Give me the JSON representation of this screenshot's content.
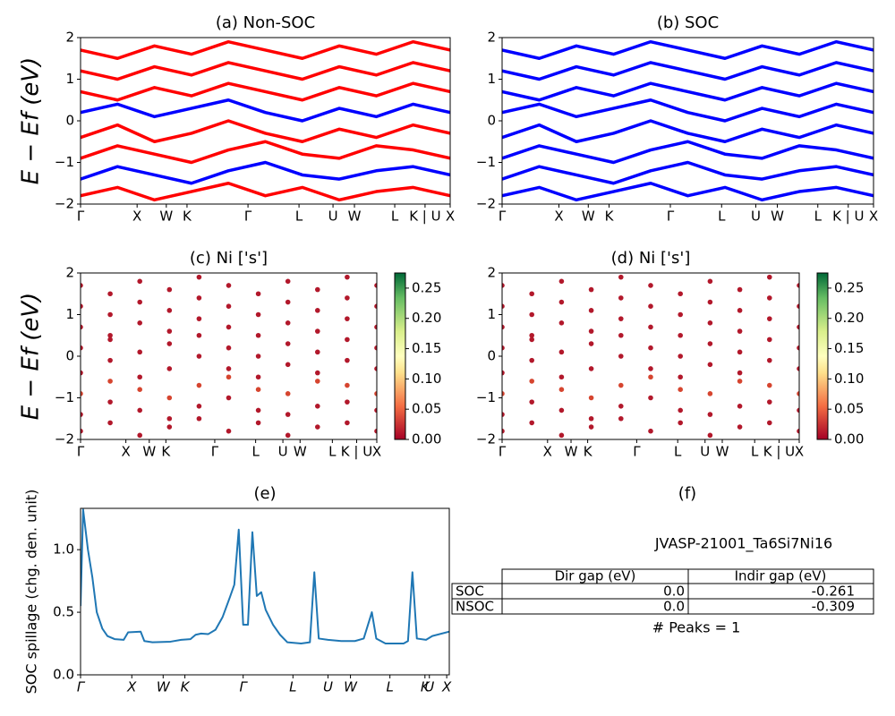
{
  "chart_data": [
    {
      "type": "line",
      "title": "(a) Non-SOC",
      "ylabel": "E − Ef (eV)",
      "x": [
        0,
        1,
        2,
        3,
        4,
        5,
        6,
        7,
        8,
        9,
        10
      ],
      "xlim": [
        0,
        10
      ],
      "ylim": [
        -2,
        2
      ],
      "xticks": [
        {
          "value": 0,
          "label": "Γ"
        },
        {
          "value": 1.53,
          "label": "X"
        },
        {
          "value": 2.32,
          "label": "W"
        },
        {
          "value": 2.88,
          "label": "K"
        },
        {
          "value": 4.53,
          "label": "Γ"
        },
        {
          "value": 5.91,
          "label": "L"
        },
        {
          "value": 6.83,
          "label": "U"
        },
        {
          "value": 7.41,
          "label": "W"
        },
        {
          "value": 8.5,
          "label": "L"
        },
        {
          "value": 9.32,
          "label": "K | U"
        },
        {
          "value": 10,
          "label": "X"
        }
      ],
      "yticks": [
        {
          "value": -2,
          "label": "−2"
        },
        {
          "value": -1,
          "label": "−1"
        },
        0,
        1,
        2
      ],
      "series": [
        {
          "color": "#ff0000",
          "values": [
            -1.8,
            -1.6,
            -1.9,
            -1.7,
            -1.5,
            -1.8,
            -1.6,
            -1.9,
            -1.7,
            -1.6,
            -1.8
          ]
        },
        {
          "color": "#0000ff",
          "values": [
            -1.4,
            -1.1,
            -1.3,
            -1.5,
            -1.2,
            -1.0,
            -1.3,
            -1.4,
            -1.2,
            -1.1,
            -1.3
          ]
        },
        {
          "color": "#ff0000",
          "values": [
            -0.9,
            -0.6,
            -0.8,
            -1.0,
            -0.7,
            -0.5,
            -0.8,
            -0.9,
            -0.6,
            -0.7,
            -0.9
          ]
        },
        {
          "color": "#ff0000",
          "values": [
            -0.4,
            -0.1,
            -0.5,
            -0.3,
            0.0,
            -0.3,
            -0.5,
            -0.2,
            -0.4,
            -0.1,
            -0.3
          ]
        },
        {
          "color": "#0000ff",
          "values": [
            0.2,
            0.4,
            0.1,
            0.3,
            0.5,
            0.2,
            0.0,
            0.3,
            0.1,
            0.4,
            0.2
          ]
        },
        {
          "color": "#ff0000",
          "values": [
            0.7,
            0.5,
            0.8,
            0.6,
            0.9,
            0.7,
            0.5,
            0.8,
            0.6,
            0.9,
            0.7
          ]
        },
        {
          "color": "#ff0000",
          "values": [
            1.2,
            1.0,
            1.3,
            1.1,
            1.4,
            1.2,
            1.0,
            1.3,
            1.1,
            1.4,
            1.2
          ]
        },
        {
          "color": "#ff0000",
          "values": [
            1.7,
            1.5,
            1.8,
            1.6,
            1.9,
            1.7,
            1.5,
            1.8,
            1.6,
            1.9,
            1.7
          ]
        }
      ]
    },
    {
      "type": "line",
      "title": "(b) SOC",
      "x": [
        0,
        1,
        2,
        3,
        4,
        5,
        6,
        7,
        8,
        9,
        10
      ],
      "xlim": [
        0,
        10
      ],
      "ylim": [
        -2,
        2
      ],
      "xticks": [
        {
          "value": 0,
          "label": "Γ"
        },
        {
          "value": 1.53,
          "label": "X"
        },
        {
          "value": 2.32,
          "label": "W"
        },
        {
          "value": 2.88,
          "label": "K"
        },
        {
          "value": 4.53,
          "label": "Γ"
        },
        {
          "value": 5.91,
          "label": "L"
        },
        {
          "value": 6.83,
          "label": "U"
        },
        {
          "value": 7.41,
          "label": "W"
        },
        {
          "value": 8.5,
          "label": "L"
        },
        {
          "value": 9.32,
          "label": "K | U"
        },
        {
          "value": 10,
          "label": "X"
        }
      ],
      "yticks": [
        {
          "value": -2,
          "label": "−2"
        },
        {
          "value": -1,
          "label": "−1"
        },
        0,
        1,
        2
      ],
      "series": [
        {
          "color": "#0000ff",
          "values": [
            -1.8,
            -1.6,
            -1.9,
            -1.7,
            -1.5,
            -1.8,
            -1.6,
            -1.9,
            -1.7,
            -1.6,
            -1.8
          ]
        },
        {
          "color": "#0000ff",
          "values": [
            -1.4,
            -1.1,
            -1.3,
            -1.5,
            -1.2,
            -1.0,
            -1.3,
            -1.4,
            -1.2,
            -1.1,
            -1.3
          ]
        },
        {
          "color": "#0000ff",
          "values": [
            -0.9,
            -0.6,
            -0.8,
            -1.0,
            -0.7,
            -0.5,
            -0.8,
            -0.9,
            -0.6,
            -0.7,
            -0.9
          ]
        },
        {
          "color": "#0000ff",
          "values": [
            -0.4,
            -0.1,
            -0.5,
            -0.3,
            0.0,
            -0.3,
            -0.5,
            -0.2,
            -0.4,
            -0.1,
            -0.3
          ]
        },
        {
          "color": "#0000ff",
          "values": [
            0.2,
            0.4,
            0.1,
            0.3,
            0.5,
            0.2,
            0.0,
            0.3,
            0.1,
            0.4,
            0.2
          ]
        },
        {
          "color": "#0000ff",
          "values": [
            0.7,
            0.5,
            0.8,
            0.6,
            0.9,
            0.7,
            0.5,
            0.8,
            0.6,
            0.9,
            0.7
          ]
        },
        {
          "color": "#0000ff",
          "values": [
            1.2,
            1.0,
            1.3,
            1.1,
            1.4,
            1.2,
            1.0,
            1.3,
            1.1,
            1.4,
            1.2
          ]
        },
        {
          "color": "#0000ff",
          "values": [
            1.7,
            1.5,
            1.8,
            1.6,
            1.9,
            1.7,
            1.5,
            1.8,
            1.6,
            1.9,
            1.7
          ]
        }
      ]
    },
    {
      "type": "scatter",
      "title": "(c)  Ni ['s']",
      "ylabel": "E − Ef (eV)",
      "x": [
        0,
        1,
        2,
        3,
        4,
        5,
        6,
        7,
        8,
        9,
        10
      ],
      "xlim": [
        0,
        10
      ],
      "ylim": [
        -2,
        2
      ],
      "xticks": [
        {
          "value": 0,
          "label": "Γ"
        },
        {
          "value": 1.53,
          "label": "X"
        },
        {
          "value": 2.32,
          "label": "W"
        },
        {
          "value": 2.88,
          "label": "K"
        },
        {
          "value": 4.53,
          "label": "Γ"
        },
        {
          "value": 5.91,
          "label": "L"
        },
        {
          "value": 6.83,
          "label": "U"
        },
        {
          "value": 7.41,
          "label": "W"
        },
        {
          "value": 8.5,
          "label": "L"
        },
        {
          "value": 9.32,
          "label": "K | U"
        },
        {
          "value": 10,
          "label": "X"
        }
      ],
      "yticks": [
        {
          "value": -2,
          "label": "−2"
        },
        {
          "value": -1,
          "label": "−1"
        },
        0,
        1,
        2
      ],
      "colorbar": {
        "lim": [
          0,
          0.275
        ],
        "ticks": [
          {
            "value": 0,
            "label": "0.00"
          },
          {
            "value": 0.05,
            "label": "0.05"
          },
          {
            "value": 0.1,
            "label": "0.10"
          },
          {
            "value": 0.15,
            "label": "0.15"
          },
          {
            "value": 0.2,
            "label": "0.20"
          },
          {
            "value": 0.25,
            "label": "0.25"
          }
        ]
      },
      "series": [
        {
          "color": "#b2182b",
          "values": [
            -1.8,
            -1.6,
            -1.9,
            -1.7,
            -1.5,
            -1.8,
            -1.6,
            -1.9,
            -1.7,
            -1.6,
            -1.8
          ]
        },
        {
          "color": "#b2182b",
          "values": [
            -1.4,
            -1.1,
            -1.3,
            -1.5,
            -1.2,
            -1.0,
            -1.3,
            -1.4,
            -1.2,
            -1.1,
            -1.3
          ]
        },
        {
          "color": "#d6452f",
          "values": [
            -0.9,
            -0.6,
            -0.8,
            -1.0,
            -0.7,
            -0.5,
            -0.8,
            -0.9,
            -0.6,
            -0.7,
            -0.9
          ]
        },
        {
          "color": "#b2182b",
          "values": [
            -0.4,
            -0.1,
            -0.5,
            -0.3,
            0.0,
            -0.3,
            -0.5,
            -0.2,
            -0.4,
            -0.1,
            -0.3
          ]
        },
        {
          "color": "#b2182b",
          "values": [
            0.2,
            0.4,
            0.1,
            0.3,
            0.5,
            0.2,
            0.0,
            0.3,
            0.1,
            0.4,
            0.2
          ]
        },
        {
          "color": "#b2182b",
          "values": [
            0.7,
            0.5,
            0.8,
            0.6,
            0.9,
            0.7,
            0.5,
            0.8,
            0.6,
            0.9,
            0.7
          ]
        },
        {
          "color": "#b2182b",
          "values": [
            1.2,
            1.0,
            1.3,
            1.1,
            1.4,
            1.2,
            1.0,
            1.3,
            1.1,
            1.4,
            1.2
          ]
        },
        {
          "color": "#b2182b",
          "values": [
            1.7,
            1.5,
            1.8,
            1.6,
            1.9,
            1.7,
            1.5,
            1.8,
            1.6,
            1.9,
            1.7
          ]
        }
      ]
    },
    {
      "type": "scatter",
      "title": "(d) Ni ['s']",
      "x": [
        0,
        1,
        2,
        3,
        4,
        5,
        6,
        7,
        8,
        9,
        10
      ],
      "xlim": [
        0,
        10
      ],
      "ylim": [
        -2,
        2
      ],
      "xticks": [
        {
          "value": 0,
          "label": "Γ"
        },
        {
          "value": 1.53,
          "label": "X"
        },
        {
          "value": 2.32,
          "label": "W"
        },
        {
          "value": 2.88,
          "label": "K"
        },
        {
          "value": 4.53,
          "label": "Γ"
        },
        {
          "value": 5.91,
          "label": "L"
        },
        {
          "value": 6.83,
          "label": "U"
        },
        {
          "value": 7.41,
          "label": "W"
        },
        {
          "value": 8.5,
          "label": "L"
        },
        {
          "value": 9.32,
          "label": "K | U"
        },
        {
          "value": 10,
          "label": "X"
        }
      ],
      "yticks": [
        {
          "value": -2,
          "label": "−2"
        },
        {
          "value": -1,
          "label": "−1"
        },
        0,
        1,
        2
      ],
      "colorbar": {
        "lim": [
          0,
          0.275
        ],
        "ticks": [
          {
            "value": 0,
            "label": "0.00"
          },
          {
            "value": 0.05,
            "label": "0.05"
          },
          {
            "value": 0.1,
            "label": "0.10"
          },
          {
            "value": 0.15,
            "label": "0.15"
          },
          {
            "value": 0.2,
            "label": "0.20"
          },
          {
            "value": 0.25,
            "label": "0.25"
          }
        ]
      },
      "series": [
        {
          "color": "#b2182b",
          "values": [
            -1.8,
            -1.6,
            -1.9,
            -1.7,
            -1.5,
            -1.8,
            -1.6,
            -1.9,
            -1.7,
            -1.6,
            -1.8
          ]
        },
        {
          "color": "#b2182b",
          "values": [
            -1.4,
            -1.1,
            -1.3,
            -1.5,
            -1.2,
            -1.0,
            -1.3,
            -1.4,
            -1.2,
            -1.1,
            -1.3
          ]
        },
        {
          "color": "#d6452f",
          "values": [
            -0.9,
            -0.6,
            -0.8,
            -1.0,
            -0.7,
            -0.5,
            -0.8,
            -0.9,
            -0.6,
            -0.7,
            -0.9
          ]
        },
        {
          "color": "#b2182b",
          "values": [
            -0.4,
            -0.1,
            -0.5,
            -0.3,
            0.0,
            -0.3,
            -0.5,
            -0.2,
            -0.4,
            -0.1,
            -0.3
          ]
        },
        {
          "color": "#b2182b",
          "values": [
            0.2,
            0.4,
            0.1,
            0.3,
            0.5,
            0.2,
            0.0,
            0.3,
            0.1,
            0.4,
            0.2
          ]
        },
        {
          "color": "#b2182b",
          "values": [
            0.7,
            0.5,
            0.8,
            0.6,
            0.9,
            0.7,
            0.5,
            0.8,
            0.6,
            0.9,
            0.7
          ]
        },
        {
          "color": "#b2182b",
          "values": [
            1.2,
            1.0,
            1.3,
            1.1,
            1.4,
            1.2,
            1.0,
            1.3,
            1.1,
            1.4,
            1.2
          ]
        },
        {
          "color": "#b2182b",
          "values": [
            1.7,
            1.5,
            1.8,
            1.6,
            1.9,
            1.7,
            1.5,
            1.8,
            1.6,
            1.9,
            1.7
          ]
        }
      ]
    },
    {
      "type": "line",
      "title": "(e)",
      "ylabel": "SOC spillage (chg. den. unit)",
      "italic_xticks": true,
      "x": [
        0,
        0.07,
        0.2,
        0.32,
        0.44,
        0.59,
        0.73,
        0.93,
        1.17,
        1.29,
        1.63,
        1.73,
        1.95,
        2.44,
        2.73,
        2.98,
        3.12,
        3.27,
        3.46,
        3.66,
        3.85,
        4.05,
        4.17,
        4.29,
        4.41,
        4.54,
        4.66,
        4.78,
        4.9,
        5.02,
        5.22,
        5.41,
        5.61,
        5.98,
        6.22,
        6.34,
        6.46,
        6.71,
        7.07,
        7.44,
        7.68,
        7.9,
        8.02,
        8.27,
        8.76,
        8.88,
        9.0,
        9.12,
        9.37,
        9.54,
        10
      ],
      "xlim": [
        0,
        10
      ],
      "ylim": [
        0,
        1.33
      ],
      "xticks": [
        {
          "value": 0,
          "label": "Γ"
        },
        {
          "value": 1.39,
          "label": "X"
        },
        {
          "value": 2.24,
          "label": "W"
        },
        {
          "value": 2.83,
          "label": "K"
        },
        {
          "value": 4.41,
          "label": "Γ"
        },
        {
          "value": 5.76,
          "label": "L"
        },
        {
          "value": 6.71,
          "label": "U"
        },
        {
          "value": 7.32,
          "label": "W"
        },
        {
          "value": 8.39,
          "label": "L"
        },
        {
          "value": 9.34,
          "label": "K"
        },
        {
          "value": 9.46,
          "label": "U"
        },
        {
          "value": 9.93,
          "label": "X"
        }
      ],
      "yticks": [
        {
          "value": 0,
          "label": "0.0"
        },
        {
          "value": 0.5,
          "label": "0.5"
        },
        {
          "value": 1,
          "label": "1.0"
        }
      ],
      "series": [
        {
          "color": "#1f77b4",
          "values": [
            0.55,
            1.32,
            1.0,
            0.78,
            0.5,
            0.37,
            0.31,
            0.285,
            0.28,
            0.34,
            0.345,
            0.27,
            0.26,
            0.265,
            0.28,
            0.285,
            0.32,
            0.33,
            0.325,
            0.36,
            0.46,
            0.62,
            0.72,
            1.16,
            0.4,
            0.4,
            1.14,
            0.63,
            0.66,
            0.52,
            0.4,
            0.32,
            0.26,
            0.25,
            0.26,
            0.82,
            0.29,
            0.28,
            0.27,
            0.27,
            0.29,
            0.5,
            0.29,
            0.25,
            0.25,
            0.27,
            0.82,
            0.29,
            0.28,
            0.31,
            0.345
          ]
        }
      ]
    }
  ],
  "table": {
    "title": "(f)",
    "caption": "JVASP-21001_Ta6Si7Ni16",
    "header": [
      "Dir gap (eV)",
      "Indir gap (eV)"
    ],
    "rows": [
      [
        "SOC",
        "0.0",
        "-0.261"
      ],
      [
        "NSOC",
        "0.0",
        "-0.309"
      ]
    ],
    "footer": "# Peaks = 1"
  }
}
